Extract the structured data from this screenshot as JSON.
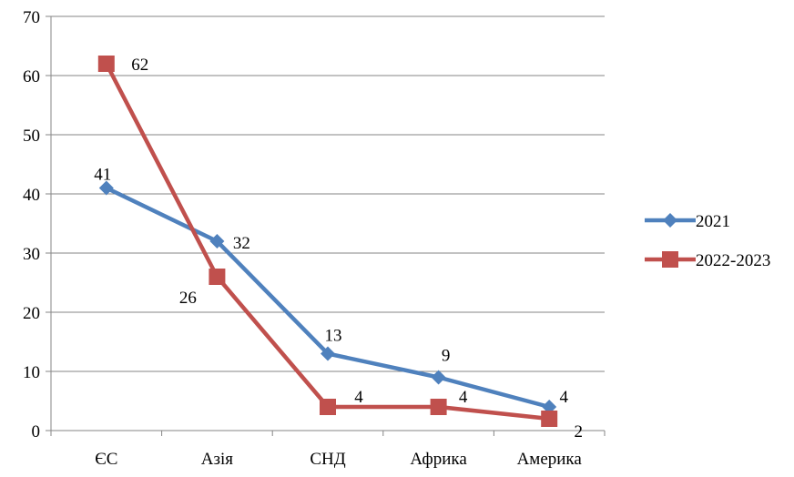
{
  "chart_data": {
    "type": "line",
    "title": "",
    "xlabel": "",
    "ylabel": "",
    "categories": [
      "ЄС",
      "Азія",
      "СНД",
      "Африка",
      "Америка"
    ],
    "ylim": [
      0,
      70
    ],
    "yticks": [
      0,
      10,
      20,
      30,
      40,
      50,
      60,
      70
    ],
    "grid": true,
    "legend_position": "right",
    "series": [
      {
        "name": "2021",
        "values": [
          41,
          32,
          13,
          9,
          4
        ],
        "color": "#4F81BD",
        "marker": "diamond"
      },
      {
        "name": "2022-2023",
        "values": [
          62,
          26,
          4,
          4,
          2
        ],
        "color": "#C0504D",
        "marker": "square"
      }
    ]
  }
}
